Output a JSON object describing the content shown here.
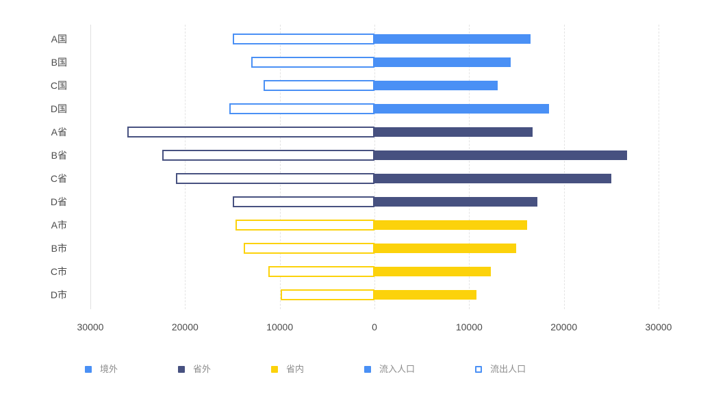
{
  "chart_data": {
    "type": "bar",
    "variant": "diverging-horizontal",
    "title": "",
    "categories": [
      "A国",
      "B国",
      "C国",
      "D国",
      "A省",
      "B省",
      "C省",
      "D省",
      "A市",
      "B市",
      "C市",
      "D市"
    ],
    "category_groups": [
      "境外",
      "境外",
      "境外",
      "境外",
      "省外",
      "省外",
      "省外",
      "省外",
      "省内",
      "省内",
      "省内",
      "省内"
    ],
    "group_colors": {
      "境外": "#4A90F5",
      "省外": "#475180",
      "省内": "#FCD20B"
    },
    "series": [
      {
        "name": "流入人口",
        "style": "filled",
        "direction": "right",
        "values": [
          16500,
          14400,
          13000,
          18400,
          16700,
          26700,
          25000,
          17200,
          16100,
          15000,
          12300,
          10800
        ]
      },
      {
        "name": "流出人口",
        "style": "outline",
        "direction": "left",
        "values": [
          15000,
          13000,
          11700,
          15300,
          26100,
          22400,
          21000,
          15000,
          14700,
          13800,
          11200,
          9900
        ]
      }
    ],
    "x_axis": {
      "tick_values": [
        -30000,
        -20000,
        -10000,
        0,
        10000,
        20000,
        30000
      ],
      "tick_labels": [
        "30000",
        "20000",
        "10000",
        "0",
        "10000",
        "20000",
        "30000"
      ],
      "xlim": [
        -30000,
        30000
      ],
      "grid": "dashed"
    },
    "legend": [
      {
        "label": "境外",
        "color": "#4A90F5",
        "style": "filled"
      },
      {
        "label": "省外",
        "color": "#475180",
        "style": "filled"
      },
      {
        "label": "省内",
        "color": "#FCD20B",
        "style": "filled"
      },
      {
        "label": "流入人口",
        "color": "#4A90F5",
        "style": "filled"
      },
      {
        "label": "流出人口",
        "color": "#4A90F5",
        "style": "outline"
      }
    ],
    "legend_position": "bottom"
  },
  "colors": {
    "background": "#FFFFFF",
    "grid": "#E3E3E3",
    "axis_line": "#E0E0E0",
    "tick_text": "#4A4A4A",
    "category_text": "#4A4A4A",
    "legend_text": "#8C8C8C"
  }
}
